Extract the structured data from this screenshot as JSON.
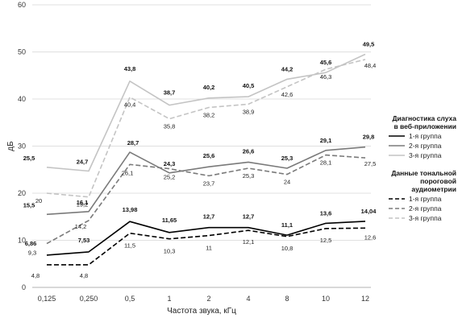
{
  "chart_data": {
    "type": "line",
    "categories": [
      "0,125",
      "0,250",
      "0,5",
      "1",
      "2",
      "4",
      "8",
      "10",
      "12"
    ],
    "xlabel": "Частота звука, кГц",
    "ylabel": "дБ",
    "ylim": [
      0,
      60
    ],
    "yticks": [
      "0",
      "10",
      "20",
      "30",
      "40",
      "50",
      "60"
    ],
    "grid": true,
    "legend_position": "right",
    "legend_groups": [
      {
        "title_lines": [
          "Диагностика слуха",
          "в веб-приложении"
        ],
        "method": "web"
      },
      {
        "title_lines": [
          "Данные тональной",
          "пороговой",
          "аудиометрии"
        ],
        "method": "audio"
      }
    ],
    "series": [
      {
        "name": "1-я группа",
        "method": "web",
        "color": "#000000",
        "dash": "solid",
        "width": 1.6,
        "values": [
          6.86,
          7.53,
          13.98,
          11.65,
          12.7,
          12.7,
          11.1,
          13.6,
          14.04
        ],
        "labels": [
          "6,86",
          "7,53",
          "13,98",
          "11,65",
          "12,7",
          "12,7",
          "11,1",
          "13,6",
          "14,04"
        ]
      },
      {
        "name": "2-я группа",
        "method": "web",
        "color": "#7a7a7a",
        "dash": "solid",
        "width": 1.6,
        "values": [
          15.5,
          16.1,
          28.7,
          24.3,
          25.6,
          26.6,
          25.3,
          29.1,
          29.8
        ],
        "labels": [
          "15,5",
          "16,1",
          "28,7",
          "24,3",
          "25,6",
          "26,6",
          "25,3",
          "29,1",
          "29,8"
        ]
      },
      {
        "name": "3-я группа",
        "method": "web",
        "color": "#c4c4c4",
        "dash": "solid",
        "width": 1.6,
        "values": [
          25.5,
          24.7,
          43.8,
          38.7,
          40.2,
          40.5,
          44.2,
          45.6,
          49.5
        ],
        "labels": [
          "25,5",
          "24,7",
          "43,8",
          "38,7",
          "40,2",
          "40,5",
          "44,2",
          "45,6",
          "49,5"
        ]
      },
      {
        "name": "1-я группа",
        "method": "audio",
        "color": "#000000",
        "dash": "dashed",
        "width": 1.6,
        "values": [
          4.8,
          4.8,
          11.5,
          10.3,
          11,
          12.1,
          10.8,
          12.5,
          12.6
        ],
        "labels": [
          "4,8",
          "4,8",
          "11,5",
          "10,3",
          "11",
          "12,1",
          "10,8",
          "12,5",
          "12,6"
        ]
      },
      {
        "name": "2-я группа",
        "method": "audio",
        "color": "#7a7a7a",
        "dash": "dashed",
        "width": 1.6,
        "values": [
          9.3,
          14.2,
          26.1,
          25.2,
          23.7,
          25.3,
          24,
          28.1,
          27.5
        ],
        "labels": [
          "9,3",
          "14,2",
          "26,1",
          "25,2",
          "23,7",
          "25,3",
          "24",
          "28,1",
          "27,5"
        ]
      },
      {
        "name": "3-я группа",
        "method": "audio",
        "color": "#c4c4c4",
        "dash": "dashed",
        "width": 1.6,
        "values": [
          20,
          19.2,
          40.4,
          35.8,
          38.2,
          38.9,
          42.6,
          46.3,
          48.4
        ],
        "labels": [
          "20",
          "19,2",
          "40,4",
          "35,8",
          "38,2",
          "38,9",
          "42,6",
          "46,3",
          "48,4"
        ]
      }
    ]
  }
}
